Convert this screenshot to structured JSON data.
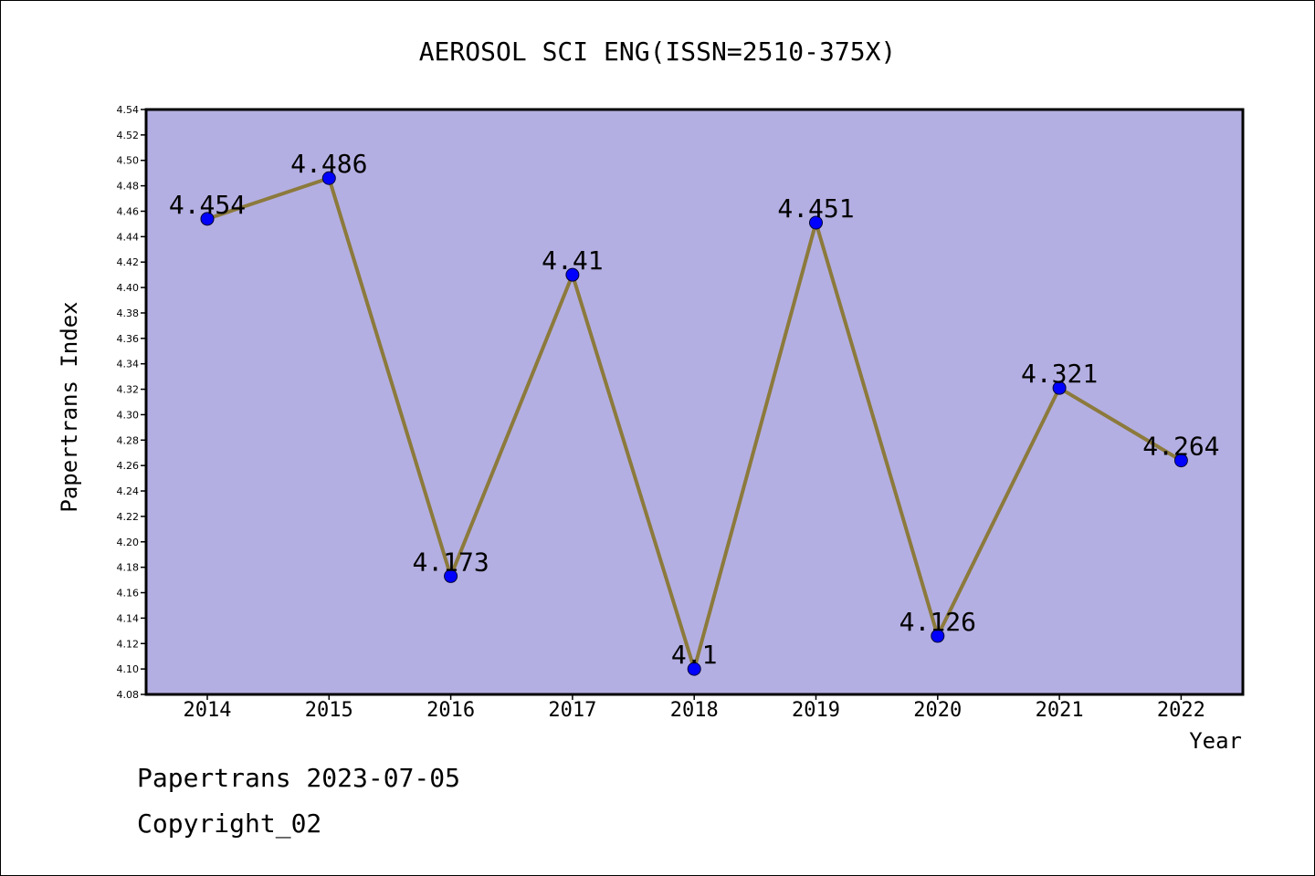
{
  "chart_data": {
    "type": "line",
    "title": "AEROSOL SCI ENG(ISSN=2510-375X)",
    "xlabel": "Year",
    "ylabel": "Papertrans Index",
    "categories": [
      "2014",
      "2015",
      "2016",
      "2017",
      "2018",
      "2019",
      "2020",
      "2021",
      "2022"
    ],
    "series": [
      {
        "values": [
          4.454,
          4.486,
          4.173,
          4.41,
          4.1,
          4.451,
          4.126,
          4.321,
          4.264
        ],
        "data_labels": [
          "4.454",
          "4.486",
          "4.173",
          "4.41",
          "4.1",
          "4.451",
          "4.126",
          "4.321",
          "4.264"
        ]
      }
    ],
    "ylim": [
      4.08,
      4.54
    ],
    "yticks": [
      "4.08",
      "4.10",
      "4.12",
      "4.14",
      "4.16",
      "4.18",
      "4.20",
      "4.22",
      "4.24",
      "4.26",
      "4.28",
      "4.30",
      "4.32",
      "4.34",
      "4.36",
      "4.38",
      "4.40",
      "4.42",
      "4.44",
      "4.46",
      "4.48",
      "4.50",
      "4.52",
      "4.54"
    ],
    "grid": false,
    "legend": "none",
    "colors": {
      "plot_background": "#b4afe2",
      "line": "#8c7a3c",
      "marker": "#0000ff"
    }
  },
  "footer": {
    "date_line": "Papertrans 2023-07-05",
    "copyright": "Copyright_02"
  }
}
